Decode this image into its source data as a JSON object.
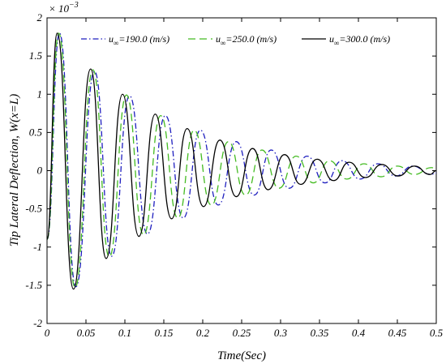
{
  "chart_data": {
    "type": "line",
    "xlabel": "Time(Sec)",
    "ylabel": "Tip Lateral Deflection, W(x=L)",
    "y_multiplier_label": "× 10",
    "y_multiplier_exp": "−3",
    "xlim": [
      0,
      0.5
    ],
    "ylim": [
      -2,
      2
    ],
    "xticks": [
      0,
      0.05,
      0.1,
      0.15,
      0.2,
      0.25,
      0.3,
      0.35,
      0.4,
      0.45,
      0.5
    ],
    "xtick_labels": [
      "0",
      "0.05",
      "0.1",
      "0.15",
      "0.2",
      "0.25",
      "0.3",
      "0.35",
      "0.4",
      "0.45",
      "0.5"
    ],
    "yticks": [
      -2,
      -1.5,
      -1,
      -0.5,
      0,
      0.5,
      1,
      1.5,
      2
    ],
    "ytick_labels": [
      "-2",
      "-1.5",
      "-1",
      "-0.5",
      "0",
      "0.5",
      "1",
      "1.5",
      "2"
    ],
    "legend_position": "top",
    "series": [
      {
        "name": "u∞=190.0 (m/s)",
        "legend_symbol": "u",
        "legend_sub": "∞",
        "legend_text": "=190.0 (m/s)",
        "color": "#1f1fbf",
        "dash": "7,3,1.5,3",
        "x": [
          0,
          0.016,
          0.037,
          0.061,
          0.083,
          0.106,
          0.129,
          0.152,
          0.175,
          0.197,
          0.22,
          0.243,
          0.266,
          0.288,
          0.311,
          0.334,
          0.357,
          0.379,
          0.402,
          0.425,
          0.448,
          0.47,
          0.493,
          0.5
        ],
        "y": [
          -0.9,
          1.8,
          -1.52,
          1.3,
          -1.12,
          0.98,
          -0.83,
          0.72,
          -0.62,
          0.53,
          -0.45,
          0.38,
          -0.32,
          0.27,
          -0.23,
          0.19,
          -0.16,
          0.13,
          -0.11,
          0.09,
          -0.07,
          0.06,
          -0.05,
          -0.03
        ]
      },
      {
        "name": "u∞=250.0 (m/s)",
        "legend_symbol": "u",
        "legend_sub": "∞",
        "legend_text": "=250.0 (m/s)",
        "color": "#44bb22",
        "dash": "9,5",
        "x": [
          0,
          0.015,
          0.036,
          0.059,
          0.08,
          0.102,
          0.124,
          0.146,
          0.168,
          0.189,
          0.211,
          0.233,
          0.255,
          0.276,
          0.298,
          0.32,
          0.342,
          0.363,
          0.385,
          0.407,
          0.429,
          0.45,
          0.472,
          0.494,
          0.5
        ],
        "y": [
          -0.9,
          1.8,
          -1.53,
          1.32,
          -1.13,
          0.99,
          -0.84,
          0.72,
          -0.62,
          0.53,
          -0.45,
          0.38,
          -0.32,
          0.27,
          -0.23,
          0.19,
          -0.16,
          0.13,
          -0.11,
          0.09,
          -0.08,
          0.06,
          -0.05,
          0.04,
          0.02
        ]
      },
      {
        "name": "u∞=300.0 (m/s)",
        "legend_symbol": "u",
        "legend_sub": "∞",
        "legend_text": "=300.0 (m/s)",
        "color": "#000000",
        "dash": "",
        "x": [
          0,
          0.013,
          0.034,
          0.056,
          0.076,
          0.097,
          0.118,
          0.139,
          0.16,
          0.18,
          0.201,
          0.222,
          0.243,
          0.264,
          0.284,
          0.305,
          0.326,
          0.347,
          0.368,
          0.388,
          0.409,
          0.43,
          0.451,
          0.472,
          0.492,
          0.5
        ],
        "y": [
          -0.9,
          1.8,
          -1.55,
          1.33,
          -1.15,
          1.0,
          -0.86,
          0.74,
          -0.63,
          0.55,
          -0.47,
          0.4,
          -0.34,
          0.29,
          -0.25,
          0.21,
          -0.18,
          0.15,
          -0.13,
          0.11,
          -0.09,
          0.08,
          -0.07,
          0.06,
          -0.05,
          0.0
        ]
      }
    ]
  }
}
